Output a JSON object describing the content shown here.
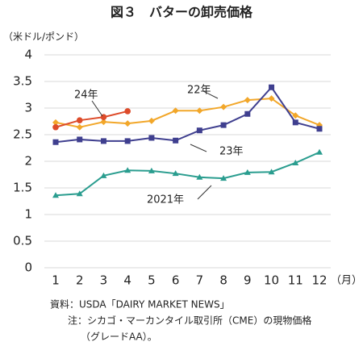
{
  "chart_data": {
    "type": "line",
    "title": "図３　バターの卸売価格",
    "y_label": "（米ドル/ポンド）",
    "x_label": "（月）",
    "categories": [
      "1",
      "2",
      "3",
      "4",
      "5",
      "6",
      "7",
      "8",
      "9",
      "10",
      "11",
      "12"
    ],
    "ylim": [
      0,
      4
    ],
    "yticks": [
      0,
      0.5,
      1,
      1.5,
      2,
      2.5,
      3,
      3.5,
      4
    ],
    "grid": true,
    "series": [
      {
        "name": "2021年",
        "color": "#2a9d8f",
        "marker": "triangle",
        "values": [
          1.36,
          1.39,
          1.73,
          1.83,
          1.82,
          1.77,
          1.7,
          1.68,
          1.79,
          1.8,
          1.97,
          2.17
        ]
      },
      {
        "name": "22年",
        "color": "#f2a72a",
        "marker": "diamond",
        "values": [
          2.73,
          2.64,
          2.74,
          2.71,
          2.76,
          2.95,
          2.95,
          3.02,
          3.15,
          3.18,
          2.86,
          2.68
        ]
      },
      {
        "name": "23年",
        "color": "#3f3f8f",
        "marker": "square",
        "values": [
          2.36,
          2.41,
          2.38,
          2.38,
          2.44,
          2.39,
          2.58,
          2.68,
          2.89,
          3.39,
          2.73,
          2.61
        ]
      },
      {
        "name": "24年",
        "color": "#dd4b2a",
        "marker": "circle",
        "values": [
          2.64,
          2.77,
          2.83,
          2.94,
          null,
          null,
          null,
          null,
          null,
          null,
          null,
          null
        ]
      }
    ],
    "notes": [
      "資料：USDA「DAIRY MARKET NEWS」",
      "注：シカゴ・マーカンタイル取引所（CME）の現物価格",
      "（グレードAA）。"
    ]
  }
}
